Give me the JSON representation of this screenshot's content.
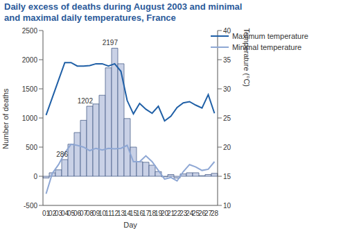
{
  "chart_data": {
    "type": "bar",
    "title": "Daily excess of deaths during August 2003 and minimal and maximal daily temperatures, France",
    "x_label": "Day",
    "y_label": "Number of deaths",
    "y2_label": "Temperature (°C)",
    "categories": [
      "01",
      "02",
      "03",
      "04",
      "05",
      "06",
      "07",
      "08",
      "09",
      "10",
      "11",
      "12",
      "13",
      "14",
      "15",
      "16",
      "17",
      "18",
      "19",
      "20",
      "21",
      "22",
      "23",
      "24",
      "25",
      "26",
      "27",
      "28"
    ],
    "values": [
      -30,
      60,
      110,
      286,
      550,
      750,
      960,
      1202,
      1240,
      1390,
      1860,
      2197,
      1930,
      990,
      500,
      250,
      240,
      190,
      80,
      -10,
      30,
      -30,
      40,
      60,
      60,
      10,
      30,
      50
    ],
    "color": "#c9d1e6",
    "series": [
      {
        "name": "Maximum temperature",
        "type": "line",
        "axis": "y2",
        "color": "#1f5fa6",
        "values": [
          25.5,
          28.5,
          31.5,
          34.5,
          34.5,
          33.9,
          33.9,
          34,
          34.3,
          34.3,
          33.9,
          34.3,
          33,
          28,
          25.7,
          27.5,
          26.5,
          25.8,
          27,
          24.5,
          25.3,
          26.8,
          27.6,
          27.8,
          27.2,
          26.7,
          29,
          25.8
        ]
      },
      {
        "name": "Minimal temperature",
        "type": "line",
        "axis": "y2",
        "color": "#8ea7d4",
        "values": [
          12,
          15.5,
          17,
          19,
          20.5,
          20.3,
          20,
          19.4,
          19.8,
          19.5,
          19.8,
          19.7,
          19.8,
          20.3,
          17.5,
          17.5,
          18.5,
          17.5,
          16,
          14.5,
          14.8,
          14.2,
          15.8,
          17,
          16.6,
          16,
          16.2,
          17.5
        ]
      }
    ],
    "annotations": [
      {
        "category": "04",
        "text": "286"
      },
      {
        "category": "08",
        "text": "1202"
      },
      {
        "category": "12",
        "text": "2197"
      }
    ],
    "ylim": [
      -500,
      2500
    ],
    "yticks": [
      -500,
      0,
      500,
      1000,
      1500,
      2000,
      2500
    ],
    "y2lim": [
      10,
      40
    ],
    "y2ticks": [
      10,
      15,
      20,
      25,
      30,
      35,
      40
    ],
    "grid": false,
    "legend": "top right"
  }
}
